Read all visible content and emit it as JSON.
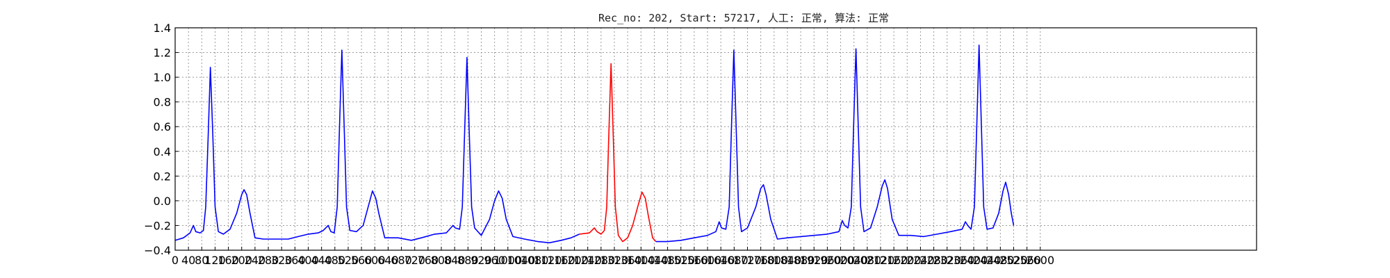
{
  "chart_data": {
    "type": "line",
    "title": "Rec_no: 202, Start: 57217, 人工: 正常, 算法: 正常",
    "xlabel": "",
    "ylabel": "",
    "xlim": [
      0,
      3250
    ],
    "ylim": [
      -0.4,
      1.4
    ],
    "grid": true,
    "x_ticks": [
      0,
      40,
      80,
      120,
      160,
      200,
      240,
      280,
      320,
      360,
      400,
      440,
      480,
      520,
      560,
      600,
      640,
      680,
      720,
      760,
      800,
      840,
      880,
      920,
      960,
      1000,
      1040,
      1080,
      1120,
      1160,
      1200,
      1240,
      1280,
      1320,
      1360,
      1400,
      1440,
      1480,
      1520,
      1560,
      1600,
      1640,
      1680,
      1720,
      1760,
      1800,
      1840,
      1880,
      1920,
      1960,
      2000,
      2040,
      2080,
      2120,
      2160,
      2200,
      2240,
      2280,
      2320,
      2360,
      2400,
      2440,
      2480,
      2520,
      2560,
      2600
    ],
    "x_tick_labels": [
      "0",
      "40",
      "80",
      "120",
      "160",
      "200",
      "240",
      "280",
      "320",
      "360",
      "400",
      "440",
      "480",
      "520",
      "560",
      "600",
      "640",
      "680",
      "720",
      "760",
      "800",
      "840",
      "880",
      "920",
      "960",
      "1000",
      "1040",
      "1080",
      "1120",
      "1160",
      "1200",
      "1240",
      "1280",
      "1320",
      "1360",
      "1400",
      "1440",
      "1480",
      "1520",
      "1560",
      "1600",
      "1640",
      "1680",
      "1720",
      "1760",
      "1800",
      "1840",
      "1880",
      "1920",
      "1960",
      "2000",
      "2040",
      "2080",
      "2120",
      "2160",
      "2200",
      "2240",
      "2280",
      "2320",
      "2360",
      "2400",
      "2440",
      "2480",
      "2520",
      "2560",
      "2600"
    ],
    "y_ticks": [
      -0.4,
      -0.2,
      0.0,
      0.2,
      0.4,
      0.6,
      0.8,
      1.0,
      1.2,
      1.4
    ],
    "y_tick_labels": [
      "−0.4",
      "−0.2",
      "0.0",
      "0.2",
      "0.4",
      "0.6",
      "0.8",
      "1.0",
      "1.2",
      "1.4"
    ],
    "series": [
      {
        "color": "#0000ff",
        "points": [
          [
            0,
            -0.32
          ],
          [
            25,
            -0.3
          ],
          [
            45,
            -0.26
          ],
          [
            55,
            -0.2
          ],
          [
            62,
            -0.25
          ],
          [
            75,
            -0.26
          ],
          [
            85,
            -0.24
          ],
          [
            92,
            -0.05
          ],
          [
            99,
            0.5
          ],
          [
            106,
            1.08
          ],
          [
            113,
            0.55
          ],
          [
            120,
            -0.05
          ],
          [
            130,
            -0.25
          ],
          [
            145,
            -0.27
          ],
          [
            165,
            -0.23
          ],
          [
            185,
            -0.1
          ],
          [
            200,
            0.05
          ],
          [
            207,
            0.09
          ],
          [
            215,
            0.05
          ],
          [
            225,
            -0.1
          ],
          [
            240,
            -0.3
          ],
          [
            265,
            -0.31
          ],
          [
            300,
            -0.31
          ],
          [
            340,
            -0.31
          ],
          [
            370,
            -0.29
          ],
          [
            400,
            -0.27
          ],
          [
            430,
            -0.26
          ],
          [
            445,
            -0.24
          ],
          [
            460,
            -0.2
          ],
          [
            468,
            -0.25
          ],
          [
            478,
            -0.26
          ],
          [
            487,
            -0.05
          ],
          [
            494,
            0.6
          ],
          [
            501,
            1.22
          ],
          [
            508,
            0.6
          ],
          [
            515,
            -0.05
          ],
          [
            525,
            -0.24
          ],
          [
            545,
            -0.25
          ],
          [
            565,
            -0.2
          ],
          [
            580,
            -0.05
          ],
          [
            593,
            0.08
          ],
          [
            603,
            0.02
          ],
          [
            612,
            -0.1
          ],
          [
            630,
            -0.3
          ],
          [
            670,
            -0.3
          ],
          [
            710,
            -0.32
          ],
          [
            740,
            -0.3
          ],
          [
            780,
            -0.27
          ],
          [
            815,
            -0.26
          ],
          [
            835,
            -0.2
          ],
          [
            842,
            -0.22
          ],
          [
            855,
            -0.23
          ],
          [
            863,
            -0.05
          ],
          [
            870,
            0.55
          ],
          [
            877,
            1.16
          ],
          [
            884,
            0.55
          ],
          [
            891,
            -0.05
          ],
          [
            900,
            -0.22
          ],
          [
            920,
            -0.28
          ],
          [
            945,
            -0.15
          ],
          [
            960,
            0.0
          ],
          [
            972,
            0.08
          ],
          [
            983,
            0.02
          ],
          [
            995,
            -0.15
          ],
          [
            1015,
            -0.29
          ],
          [
            1050,
            -0.31
          ],
          [
            1090,
            -0.33
          ],
          [
            1125,
            -0.34
          ],
          [
            1160,
            -0.32
          ],
          [
            1190,
            -0.3
          ],
          [
            1215,
            -0.27
          ]
        ]
      },
      {
        "color": "#ff0000",
        "points": [
          [
            1215,
            -0.27
          ],
          [
            1245,
            -0.26
          ],
          [
            1260,
            -0.22
          ],
          [
            1268,
            -0.25
          ],
          [
            1280,
            -0.27
          ],
          [
            1290,
            -0.24
          ],
          [
            1297,
            -0.05
          ],
          [
            1303,
            0.5
          ],
          [
            1310,
            1.11
          ],
          [
            1317,
            0.5
          ],
          [
            1323,
            -0.05
          ],
          [
            1332,
            -0.28
          ],
          [
            1345,
            -0.33
          ],
          [
            1360,
            -0.3
          ],
          [
            1375,
            -0.2
          ],
          [
            1390,
            -0.05
          ],
          [
            1403,
            0.07
          ],
          [
            1413,
            0.02
          ],
          [
            1422,
            -0.12
          ],
          [
            1435,
            -0.3
          ],
          [
            1445,
            -0.33
          ]
        ]
      },
      {
        "color": "#0000ff",
        "points": [
          [
            1445,
            -0.33
          ],
          [
            1480,
            -0.33
          ],
          [
            1520,
            -0.32
          ],
          [
            1560,
            -0.3
          ],
          [
            1600,
            -0.28
          ],
          [
            1625,
            -0.25
          ],
          [
            1635,
            -0.17
          ],
          [
            1642,
            -0.22
          ],
          [
            1655,
            -0.23
          ],
          [
            1665,
            -0.05
          ],
          [
            1672,
            0.6
          ],
          [
            1679,
            1.22
          ],
          [
            1686,
            0.6
          ],
          [
            1693,
            -0.05
          ],
          [
            1702,
            -0.25
          ],
          [
            1720,
            -0.22
          ],
          [
            1745,
            -0.05
          ],
          [
            1760,
            0.1
          ],
          [
            1768,
            0.13
          ],
          [
            1776,
            0.05
          ],
          [
            1790,
            -0.15
          ],
          [
            1810,
            -0.31
          ],
          [
            1840,
            -0.3
          ],
          [
            1880,
            -0.29
          ],
          [
            1920,
            -0.28
          ],
          [
            1960,
            -0.27
          ],
          [
            1995,
            -0.25
          ],
          [
            2005,
            -0.16
          ],
          [
            2012,
            -0.2
          ],
          [
            2022,
            -0.22
          ],
          [
            2032,
            -0.05
          ],
          [
            2039,
            0.6
          ],
          [
            2046,
            1.23
          ],
          [
            2053,
            0.6
          ],
          [
            2060,
            -0.05
          ],
          [
            2070,
            -0.25
          ],
          [
            2090,
            -0.22
          ],
          [
            2110,
            -0.05
          ],
          [
            2125,
            0.12
          ],
          [
            2133,
            0.17
          ],
          [
            2141,
            0.1
          ],
          [
            2155,
            -0.15
          ],
          [
            2175,
            -0.28
          ],
          [
            2210,
            -0.28
          ],
          [
            2250,
            -0.29
          ],
          [
            2290,
            -0.27
          ],
          [
            2330,
            -0.25
          ],
          [
            2365,
            -0.23
          ],
          [
            2375,
            -0.17
          ],
          [
            2382,
            -0.2
          ],
          [
            2392,
            -0.23
          ],
          [
            2402,
            -0.05
          ],
          [
            2409,
            0.6
          ],
          [
            2416,
            1.26
          ],
          [
            2423,
            0.6
          ],
          [
            2430,
            -0.05
          ],
          [
            2440,
            -0.23
          ],
          [
            2458,
            -0.22
          ],
          [
            2475,
            -0.1
          ],
          [
            2488,
            0.08
          ],
          [
            2496,
            0.15
          ],
          [
            2505,
            0.05
          ],
          [
            2513,
            -0.1
          ],
          [
            2520,
            -0.2
          ]
        ]
      }
    ]
  }
}
